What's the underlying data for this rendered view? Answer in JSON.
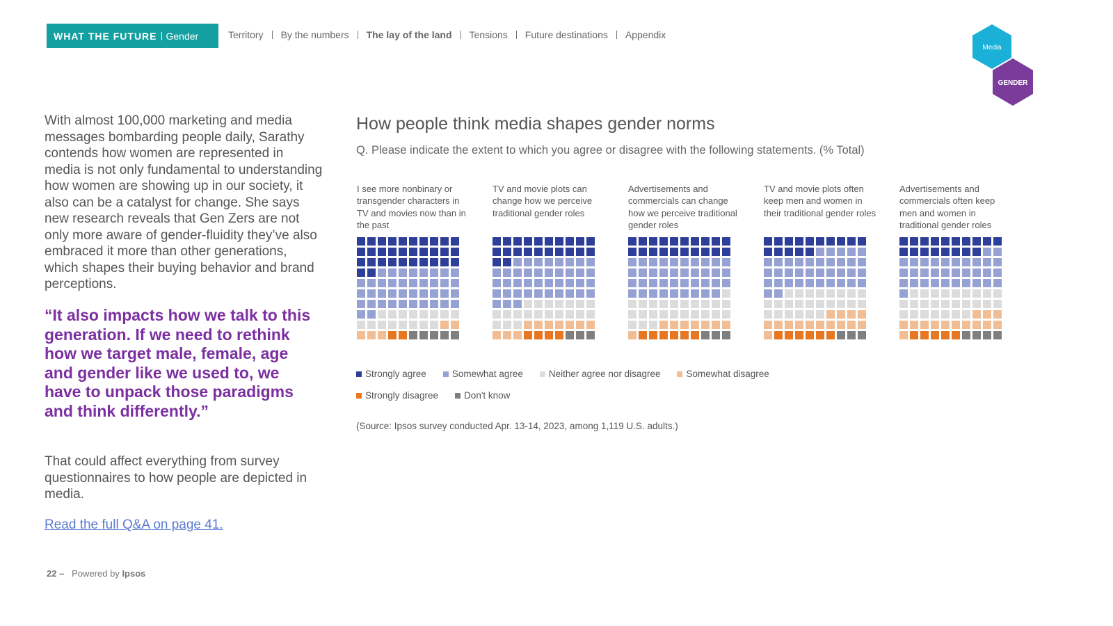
{
  "header": {
    "brand": "WHAT THE FUTURE",
    "section": "Gender",
    "nav": [
      "Territory",
      "By the numbers",
      "The lay of the land",
      "Tensions",
      "Future destinations",
      "Appendix"
    ],
    "active_nav": 2
  },
  "badges": [
    "Media",
    "GENDER"
  ],
  "body": {
    "intro": "With almost 100,000 marketing and media messages bombarding people daily, Sarathy contends how women are represented in media is not only fundamental to understanding how women are showing up in our society, it also can be a catalyst for change. She says new research reveals that Gen Zers are not only more aware of gender-fluidity they’ve also embraced it more than other generations, which shapes their buying behavior and brand perceptions.",
    "quote": "“It also impacts how we talk to this generation. If we need to rethink how we target male, female, age and gender like we used to, we have to unpack those paradigms and think differently.”",
    "outro": "That could affect everything from survey questionnaires to how people are depicted in media.",
    "link": "Read the full Q&A on page 41."
  },
  "footer": {
    "page": "22 –",
    "powered": "Powered by",
    "brand": "Ipsos"
  },
  "chart_data": {
    "type": "waffle",
    "title": "How people think media shapes gender norms",
    "subtitle": "Q. Please indicate the extent to which you agree or disagree with the following statements. (% Total)",
    "categories": [
      "I see more nonbinary or transgender characters in TV and movies now than in the past",
      "TV and movie plots can change how we perceive traditional gender roles",
      "Advertisements and commercials can change how we perceive traditional gender roles",
      "TV and movie plots often keep men and women in their traditional gender roles",
      "Advertisements and commercials often keep men and women in traditional gender roles"
    ],
    "series": [
      {
        "name": "Strongly agree",
        "color": "#2e3f99",
        "values": [
          32,
          22,
          20,
          15,
          18
        ]
      },
      {
        "name": "Somewhat agree",
        "color": "#95a2d3",
        "values": [
          40,
          41,
          39,
          37,
          33
        ]
      },
      {
        "name": "Neither agree nor disagree",
        "color": "#dcdcdc",
        "values": [
          16,
          20,
          24,
          24,
          26
        ]
      },
      {
        "name": "Somewhat disagree",
        "color": "#f0bd94",
        "values": [
          5,
          10,
          8,
          15,
          14
        ]
      },
      {
        "name": "Strongly disagree",
        "color": "#e87722",
        "values": [
          2,
          4,
          6,
          6,
          5
        ]
      },
      {
        "name": "Don't know",
        "color": "#7f7f7f",
        "values": [
          5,
          3,
          3,
          3,
          4
        ]
      }
    ],
    "source": "(Source: Ipsos survey conducted Apr. 13-14, 2023, among 1,119 U.S. adults.)"
  }
}
